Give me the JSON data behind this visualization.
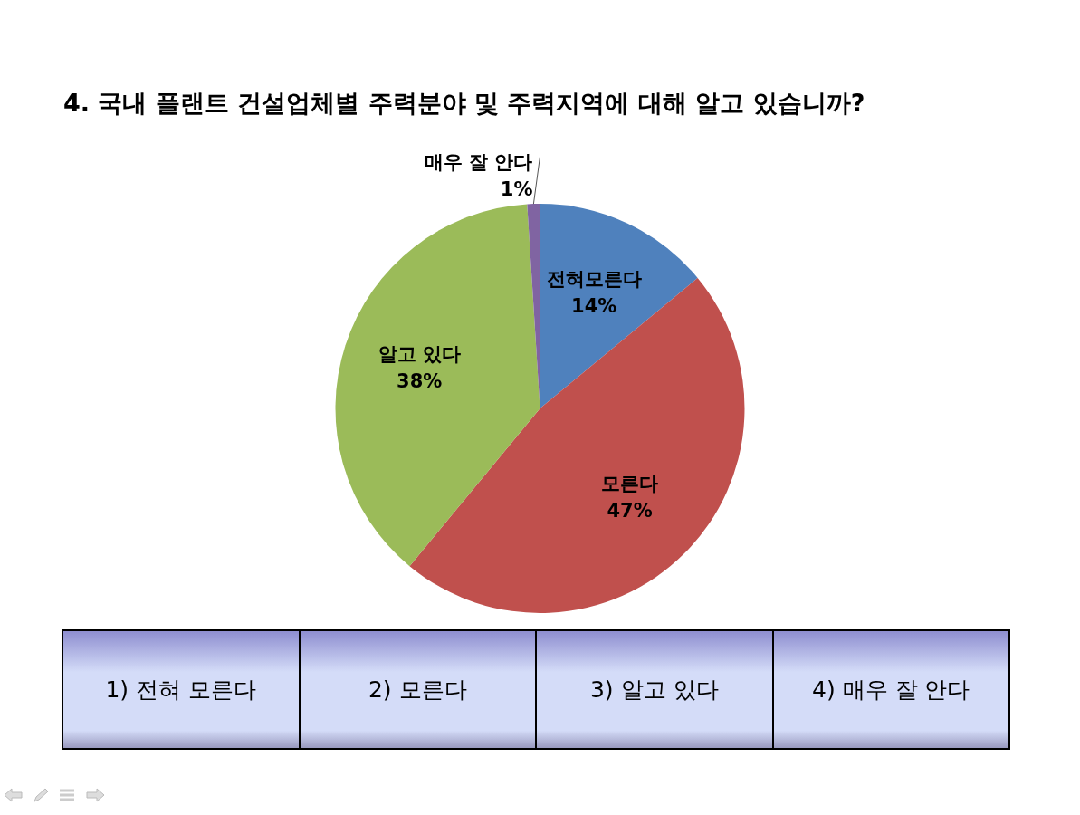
{
  "chart_data": {
    "type": "pie",
    "title": "4. 국내 플랜트 건설업체별 주력분야 및 주력지역에 대해 알고 있습니까?",
    "categories": [
      "전혀모른다",
      "모른다",
      "알고 있다",
      "매우 잘 안다"
    ],
    "values": [
      14,
      47,
      38,
      1
    ],
    "value_labels": [
      "14%",
      "47%",
      "38%",
      "1%"
    ],
    "colors": [
      "#4f81bd",
      "#c0504d",
      "#9bbb59",
      "#8064a2"
    ],
    "legend": false,
    "annotations": [
      "1) 전혀 모른다",
      "2) 모른다",
      "3) 알고 있다",
      "4) 매우 잘 안다"
    ]
  }
}
